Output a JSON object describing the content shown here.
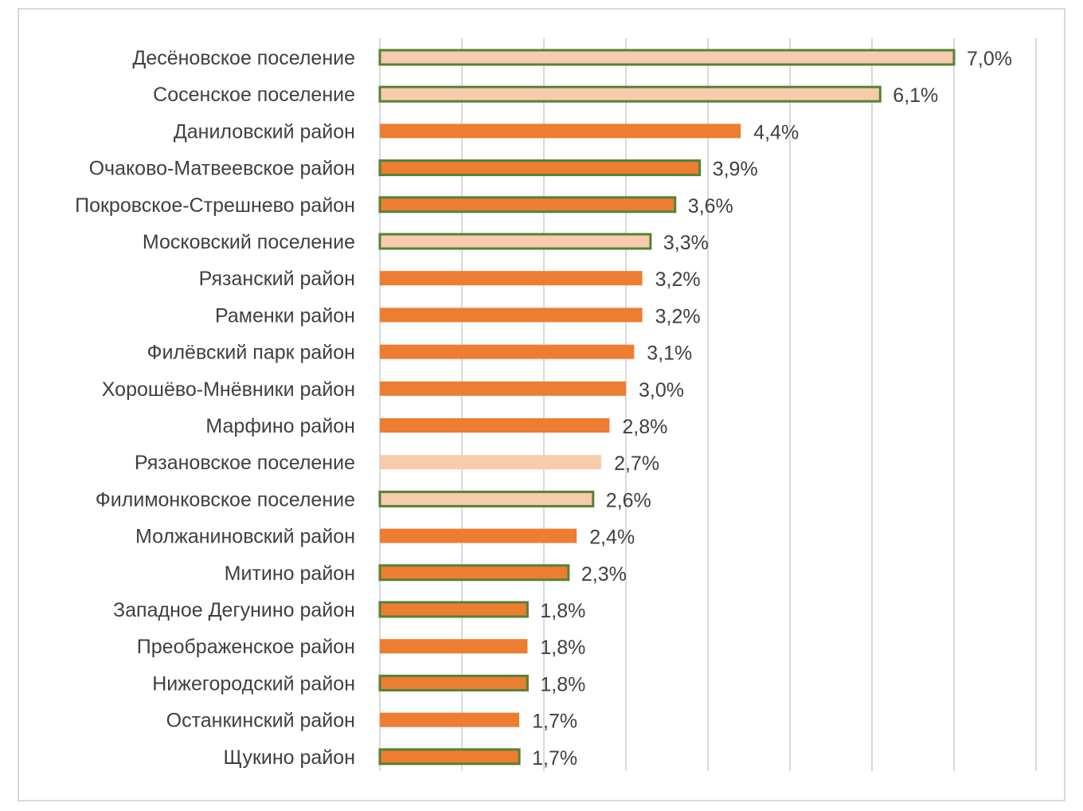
{
  "chart_data": {
    "type": "bar",
    "orientation": "horizontal",
    "title": "",
    "xlabel": "",
    "ylabel": "",
    "xlim": [
      0,
      8
    ],
    "grid": "vertical",
    "legend": "none",
    "colors": {
      "dark_fill": "#ed7d31",
      "light_fill": "#f8cbad",
      "outline": "#548235",
      "grid": "#d9d9d9",
      "text": "#404040"
    },
    "categories": [
      "Десёновское поселение",
      "Сосенское поселение",
      "Даниловский район",
      "Очаково-Матвеевское район",
      "Покровское-Стрешнево район",
      "Московский поселение",
      "Рязанский район",
      "Раменки район",
      "Филёвский парк район",
      "Хорошёво-Мнёвники район",
      "Марфино район",
      "Рязановское поселение",
      "Филимонковское поселение",
      "Молжаниновский район",
      "Митино район",
      "Западное Дегунино район",
      "Преображенское район",
      "Нижегородский район",
      "Останкинский район",
      "Щукино район"
    ],
    "values": [
      7.0,
      6.1,
      4.4,
      3.9,
      3.6,
      3.3,
      3.2,
      3.2,
      3.1,
      3.0,
      2.8,
      2.7,
      2.6,
      2.4,
      2.3,
      1.8,
      1.8,
      1.8,
      1.7,
      1.7
    ],
    "value_labels": [
      "7,0%",
      "6,1%",
      "4,4%",
      "3,9%",
      "3,6%",
      "3,3%",
      "3,2%",
      "3,2%",
      "3,1%",
      "3,0%",
      "2,8%",
      "2,7%",
      "2,6%",
      "2,4%",
      "2,3%",
      "1,8%",
      "1,8%",
      "1,8%",
      "1,7%",
      "1,7%"
    ],
    "bar_fill": [
      "light",
      "light",
      "dark",
      "dark",
      "dark",
      "light",
      "dark",
      "dark",
      "dark",
      "dark",
      "dark",
      "light",
      "light",
      "dark",
      "dark",
      "dark",
      "dark",
      "dark",
      "dark",
      "dark"
    ],
    "bar_outlined": [
      true,
      true,
      false,
      true,
      true,
      true,
      false,
      false,
      false,
      false,
      false,
      false,
      true,
      false,
      true,
      true,
      false,
      true,
      false,
      true
    ]
  }
}
